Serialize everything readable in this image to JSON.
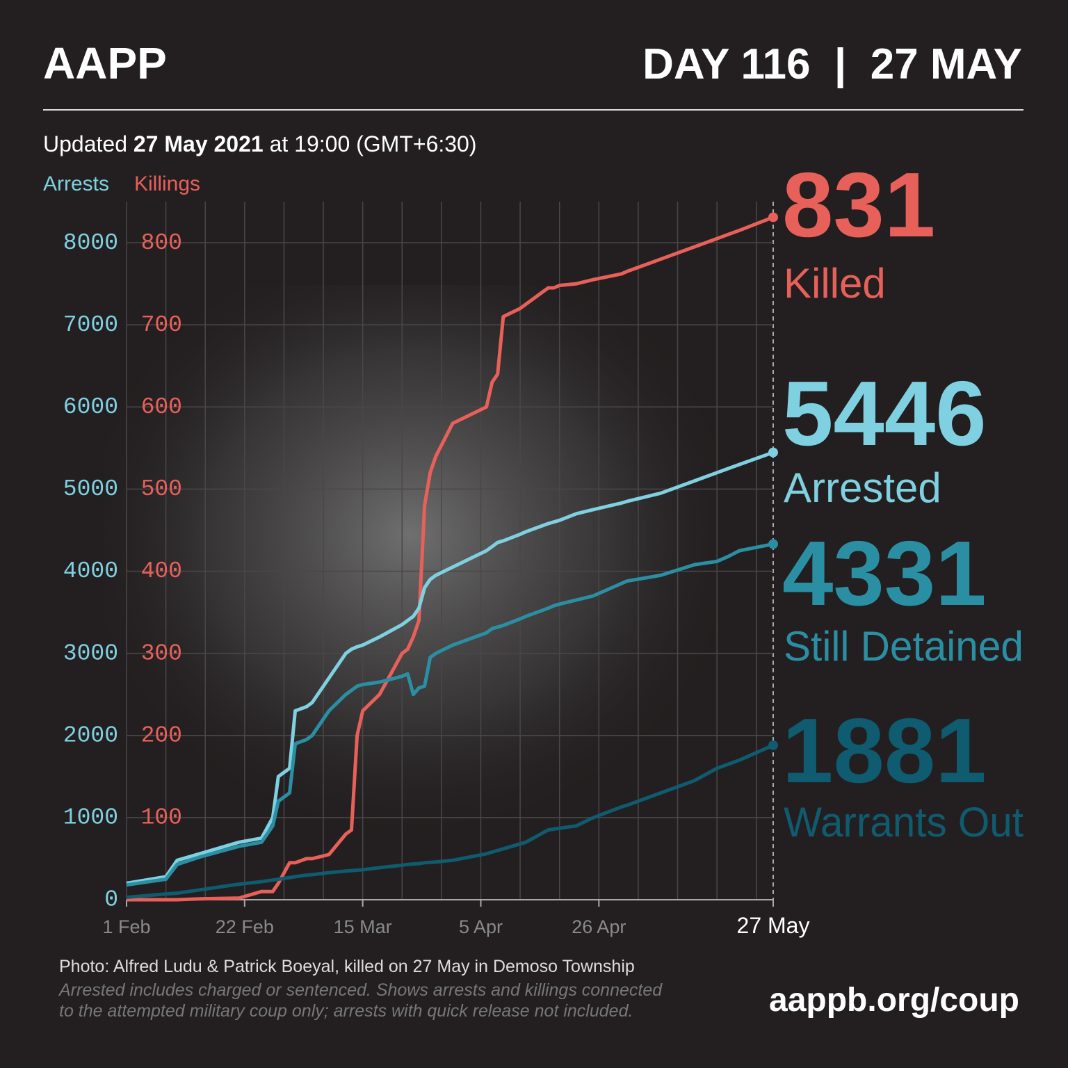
{
  "header": {
    "brand": "AAPP",
    "day": "DAY 116  |  27 MAY",
    "updated_prefix": "Updated ",
    "updated_date": "27 May 2021",
    "updated_suffix": " at 19:00 (GMT+6:30)"
  },
  "chart_data": {
    "type": "line",
    "ylabel": "Arrests",
    "y2label": "Killings",
    "x": [
      0,
      7,
      9,
      13,
      20,
      24,
      26,
      27,
      29,
      30,
      32,
      33,
      36,
      39,
      40,
      41,
      42,
      45,
      49,
      50,
      51,
      52,
      53,
      54,
      55,
      58,
      64,
      65,
      66,
      67,
      70,
      71,
      75,
      76,
      77,
      80,
      83,
      88,
      89,
      95,
      101,
      105,
      107,
      109,
      115
    ],
    "xlim": [
      0,
      115
    ],
    "xticks": [
      {
        "value": 0,
        "label": "1 Feb"
      },
      {
        "value": 21,
        "label": "22 Feb"
      },
      {
        "value": 42,
        "label": "15 Mar"
      },
      {
        "value": 63,
        "label": "5 Apr"
      },
      {
        "value": 84,
        "label": "26 Apr"
      },
      {
        "value": 115,
        "label": "27 May"
      }
    ],
    "x_minor_grid": [
      7,
      14,
      28,
      35,
      49,
      56,
      70,
      77,
      91,
      98,
      105,
      112
    ],
    "ylim": [
      0,
      8500
    ],
    "yticks": [
      0,
      1000,
      2000,
      3000,
      4000,
      5000,
      6000,
      7000,
      8000
    ],
    "y2lim": [
      0,
      850
    ],
    "y2ticks": [
      0,
      100,
      200,
      300,
      400,
      500,
      600,
      700,
      800
    ],
    "grid": true,
    "series": [
      {
        "name": "Killed",
        "color": "#e8605a",
        "axis": "y2",
        "values": [
          0,
          0,
          0,
          1,
          2,
          10,
          10,
          20,
          45,
          45,
          50,
          50,
          55,
          80,
          85,
          200,
          230,
          250,
          300,
          305,
          320,
          340,
          480,
          520,
          540,
          580,
          600,
          630,
          640,
          710,
          720,
          725,
          745,
          745,
          748,
          750,
          755,
          762,
          765,
          780,
          795,
          805,
          810,
          815,
          831
        ]
      },
      {
        "name": "Arrested",
        "color": "#7fd0e0",
        "values": [
          200,
          280,
          480,
          560,
          700,
          750,
          1000,
          1500,
          1600,
          2300,
          2350,
          2400,
          2700,
          3000,
          3050,
          3080,
          3100,
          3200,
          3350,
          3400,
          3450,
          3550,
          3800,
          3900,
          3950,
          4050,
          4250,
          4300,
          4350,
          4370,
          4450,
          4480,
          4580,
          4600,
          4620,
          4700,
          4750,
          4830,
          4850,
          4950,
          5100,
          5200,
          5250,
          5300,
          5446
        ]
      },
      {
        "name": "Still Detained",
        "color": "#2b8fa4",
        "values": [
          180,
          250,
          430,
          520,
          650,
          700,
          900,
          1200,
          1300,
          1900,
          1950,
          2000,
          2300,
          2500,
          2550,
          2600,
          2620,
          2650,
          2720,
          2750,
          2500,
          2580,
          2600,
          2950,
          3000,
          3100,
          3250,
          3300,
          3320,
          3340,
          3420,
          3450,
          3550,
          3580,
          3600,
          3650,
          3700,
          3850,
          3880,
          3950,
          4080,
          4120,
          4180,
          4250,
          4331
        ]
      },
      {
        "name": "Warrants Out",
        "color": "#0f5b70",
        "values": [
          30,
          70,
          80,
          120,
          190,
          220,
          240,
          250,
          270,
          280,
          300,
          305,
          330,
          350,
          355,
          360,
          365,
          390,
          420,
          430,
          435,
          440,
          450,
          455,
          460,
          480,
          560,
          580,
          600,
          620,
          680,
          700,
          850,
          860,
          870,
          900,
          1000,
          1130,
          1150,
          1300,
          1450,
          1600,
          1650,
          1700,
          1881
        ]
      }
    ]
  },
  "footer": {
    "photo": "Photo: Alfred Ludu & Patrick Boeyal, killed on 27 May in Demoso Township",
    "note_1": "Arrested includes charged or sentenced. Shows arrests and killings connected",
    "note_2": "to the attempted military coup only; arrests with quick release not included.",
    "url": "aappb.org/coup"
  }
}
